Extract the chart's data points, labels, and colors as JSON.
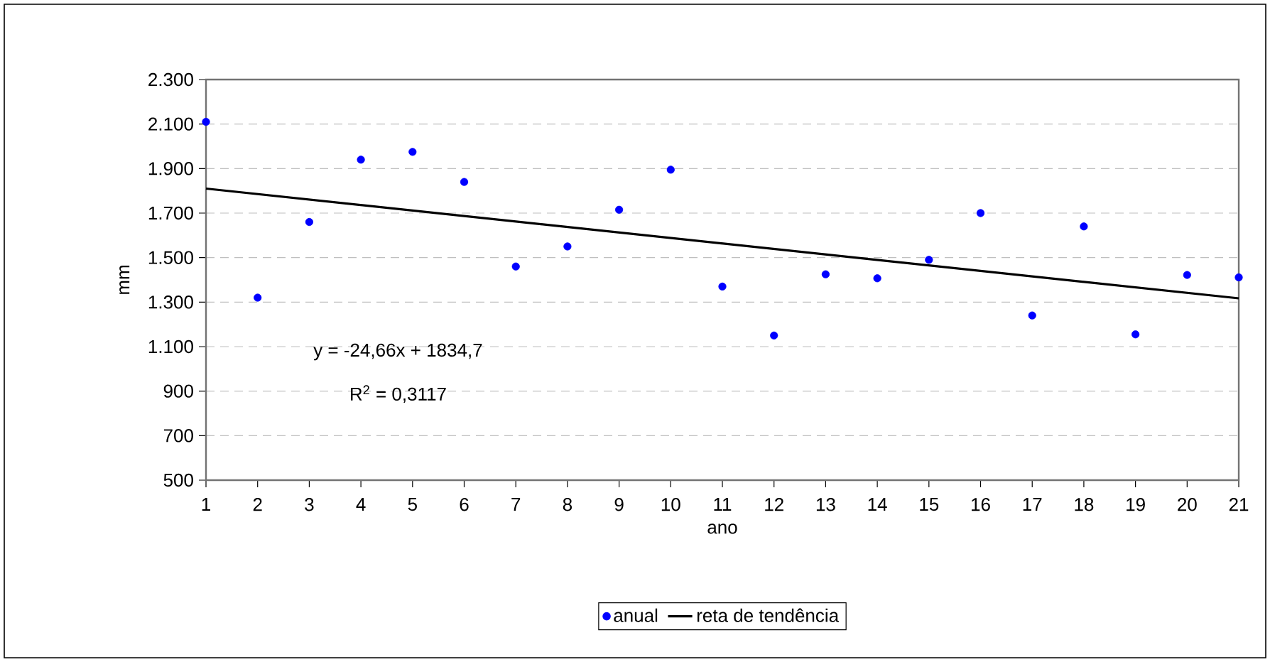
{
  "chart_data": {
    "type": "scatter",
    "xlabel": "ano",
    "ylabel": "mm",
    "xlim": [
      1,
      21
    ],
    "ylim": [
      500,
      2300
    ],
    "xticks": [
      1,
      2,
      3,
      4,
      5,
      6,
      7,
      8,
      9,
      10,
      11,
      12,
      13,
      14,
      15,
      16,
      17,
      18,
      19,
      20,
      21
    ],
    "yticks": [
      {
        "value": 500,
        "label": "500"
      },
      {
        "value": 700,
        "label": "700"
      },
      {
        "value": 900,
        "label": "900"
      },
      {
        "value": 1100,
        "label": "1.100"
      },
      {
        "value": 1300,
        "label": "1.300"
      },
      {
        "value": 1500,
        "label": "1.500"
      },
      {
        "value": 1700,
        "label": "1.700"
      },
      {
        "value": 1900,
        "label": "1.900"
      },
      {
        "value": 2100,
        "label": "2.100"
      },
      {
        "value": 2300,
        "label": "2.300"
      }
    ],
    "grid": "y",
    "legend": "bottom",
    "series": [
      {
        "name": "anual",
        "type": "scatter",
        "marker": "circle",
        "color": "#0000ff",
        "x": [
          1,
          2,
          3,
          4,
          5,
          6,
          7,
          8,
          9,
          10,
          11,
          12,
          13,
          14,
          15,
          16,
          17,
          18,
          19,
          20,
          21
        ],
        "values": [
          2110,
          1320,
          1660,
          1940,
          1975,
          1840,
          1460,
          1550,
          1715,
          1895,
          1370,
          1150,
          1425,
          1407,
          1490,
          1700,
          1240,
          1640,
          1155,
          1422,
          1411
        ]
      },
      {
        "name": "reta de tendência",
        "type": "line",
        "marker": "none",
        "line_style": "solid",
        "color": "#000000",
        "x": [
          1,
          21
        ],
        "values": [
          1810,
          1317
        ]
      }
    ],
    "annotations": [
      "y = -24,66x + 1834,7",
      "R$^{2}$ = 0,3117"
    ]
  }
}
